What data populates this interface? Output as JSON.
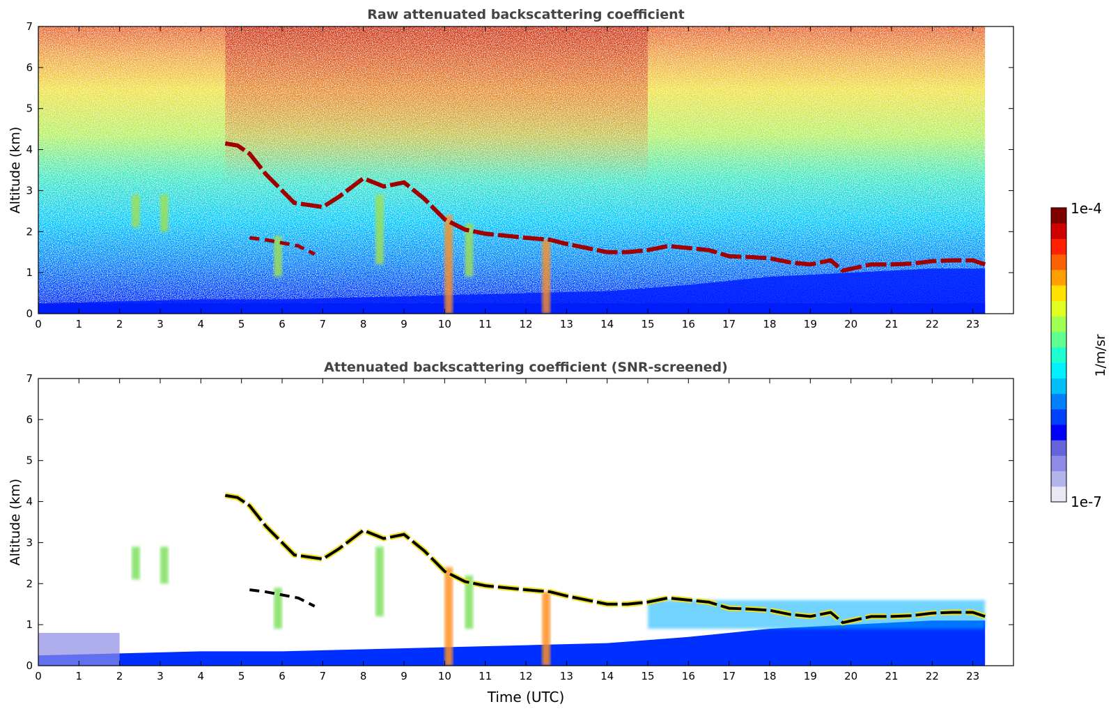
{
  "chart_data": [
    {
      "type": "heatmap",
      "title": "Raw attenuated backscattering coefficient",
      "xlabel": "",
      "ylabel": "Altitude (km)",
      "xlim": [
        0,
        24
      ],
      "ylim": [
        0,
        7
      ],
      "xticks": [
        "0",
        "1",
        "2",
        "3",
        "4",
        "5",
        "6",
        "7",
        "8",
        "9",
        "10",
        "11",
        "12",
        "13",
        "14",
        "15",
        "16",
        "17",
        "18",
        "19",
        "20",
        "21",
        "22",
        "23"
      ],
      "yticks": [
        "0",
        "1",
        "2",
        "3",
        "4",
        "5",
        "6",
        "7"
      ],
      "data_end_time": 23.3,
      "features": {
        "cloud_layer": [
          [
            4.6,
            4.15
          ],
          [
            4.9,
            4.1
          ],
          [
            5.2,
            3.9
          ],
          [
            5.6,
            3.4
          ],
          [
            6.0,
            3.0
          ],
          [
            6.3,
            2.7
          ],
          [
            7.0,
            2.6
          ],
          [
            7.4,
            2.85
          ],
          [
            8.0,
            3.3
          ],
          [
            8.5,
            3.1
          ],
          [
            9.0,
            3.2
          ],
          [
            9.5,
            2.8
          ],
          [
            10.0,
            2.3
          ],
          [
            10.5,
            2.05
          ],
          [
            11.0,
            1.95
          ],
          [
            12.0,
            1.85
          ],
          [
            12.6,
            1.8
          ],
          [
            13.0,
            1.7
          ],
          [
            13.5,
            1.6
          ],
          [
            14.0,
            1.5
          ],
          [
            14.5,
            1.5
          ],
          [
            15.0,
            1.55
          ],
          [
            15.5,
            1.65
          ],
          [
            16.0,
            1.6
          ],
          [
            16.5,
            1.55
          ],
          [
            17.0,
            1.4
          ],
          [
            17.5,
            1.38
          ],
          [
            18.0,
            1.35
          ],
          [
            18.5,
            1.25
          ],
          [
            19.0,
            1.2
          ],
          [
            19.5,
            1.3
          ],
          [
            19.8,
            1.05
          ],
          [
            20.5,
            1.2
          ],
          [
            21.0,
            1.2
          ],
          [
            21.5,
            1.22
          ],
          [
            22.0,
            1.28
          ],
          [
            22.5,
            1.3
          ],
          [
            23.0,
            1.3
          ],
          [
            23.3,
            1.2
          ]
        ],
        "secondary_layer": [
          [
            5.2,
            1.85
          ],
          [
            5.6,
            1.8
          ],
          [
            6.4,
            1.65
          ],
          [
            6.8,
            1.45
          ]
        ],
        "boundary_layer": [
          [
            0,
            0.25
          ],
          [
            2,
            0.3
          ],
          [
            4,
            0.35
          ],
          [
            6,
            0.35
          ],
          [
            8,
            0.4
          ],
          [
            10,
            0.45
          ],
          [
            12,
            0.5
          ],
          [
            14,
            0.55
          ],
          [
            16,
            0.7
          ],
          [
            18,
            0.9
          ],
          [
            20,
            1.0
          ],
          [
            22,
            1.1
          ],
          [
            23.3,
            1.1
          ]
        ],
        "virga": [
          [
            2.4,
            2.9,
            2.1
          ],
          [
            3.1,
            2.9,
            2.0
          ],
          [
            5.9,
            1.9,
            0.9
          ],
          [
            8.4,
            2.9,
            1.2
          ],
          [
            10.1,
            2.4,
            0.0
          ],
          [
            10.6,
            2.2,
            0.9
          ],
          [
            12.5,
            1.8,
            0.0
          ]
        ]
      }
    },
    {
      "type": "heatmap",
      "title": "Attenuated backscattering coefficient (SNR-screened)",
      "xlabel": "Time (UTC)",
      "ylabel": "Altitude (km)",
      "xlim": [
        0,
        24
      ],
      "ylim": [
        0,
        7
      ],
      "xticks": [
        "0",
        "1",
        "2",
        "3",
        "4",
        "5",
        "6",
        "7",
        "8",
        "9",
        "10",
        "11",
        "12",
        "13",
        "14",
        "15",
        "16",
        "17",
        "18",
        "19",
        "20",
        "21",
        "22",
        "23"
      ],
      "yticks": [
        "0",
        "1",
        "2",
        "3",
        "4",
        "5",
        "6",
        "7"
      ],
      "data_end_time": 23.3
    }
  ],
  "colorbar": {
    "max_label": "1e-4",
    "min_label": "1e-7",
    "unit_label": "1/m/sr",
    "colors": [
      "#e8e8f6",
      "#b4b4ec",
      "#8c8ce6",
      "#6464dc",
      "#0000ff",
      "#0040ff",
      "#0080ff",
      "#00bfff",
      "#00f0ff",
      "#20ffd0",
      "#60ff90",
      "#a0ff50",
      "#e0ff20",
      "#ffe000",
      "#ffa000",
      "#ff6000",
      "#ff2000",
      "#d00000",
      "#800000"
    ]
  }
}
